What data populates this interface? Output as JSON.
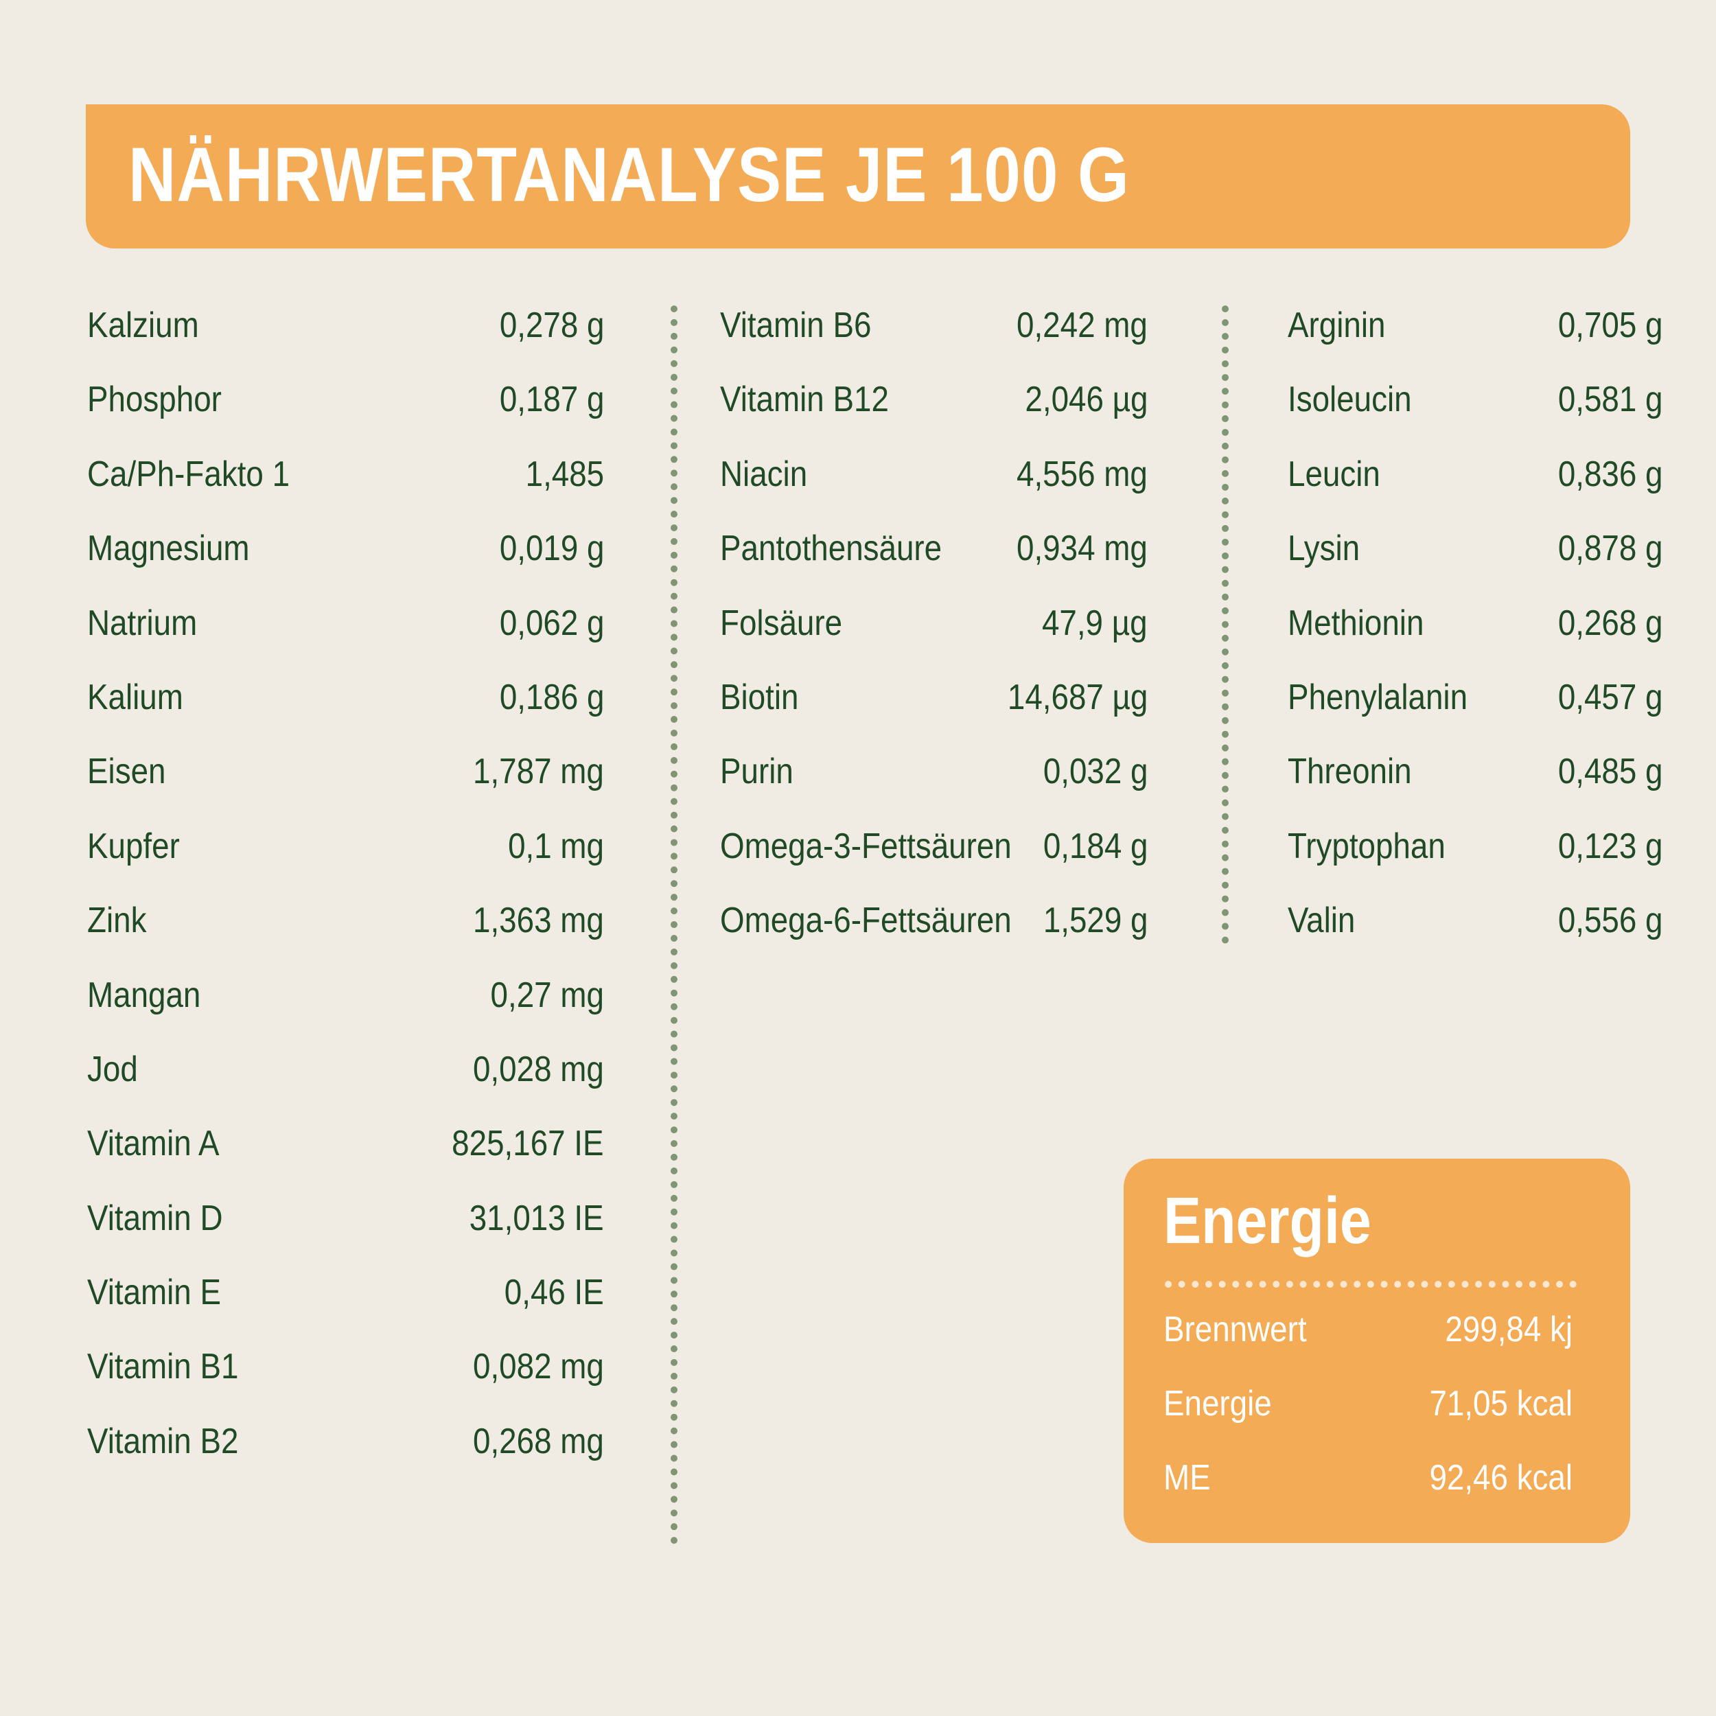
{
  "title": "NÄHRWERTANALYSE JE 100 G",
  "colors": {
    "accent": "#f4ab56",
    "text": "#1f4a25",
    "background": "#f0ebe3",
    "divider": "#7f9574"
  },
  "columns": [
    [
      {
        "label": "Kalzium",
        "value": "0,278 g"
      },
      {
        "label": "Phosphor",
        "value": "0,187 g"
      },
      {
        "label": "Ca/Ph-Fakto 1",
        "value": "1,485"
      },
      {
        "label": "Magnesium",
        "value": "0,019 g"
      },
      {
        "label": "Natrium",
        "value": "0,062 g"
      },
      {
        "label": "Kalium",
        "value": "0,186 g"
      },
      {
        "label": "Eisen",
        "value": "1,787 mg"
      },
      {
        "label": "Kupfer",
        "value": "0,1 mg"
      },
      {
        "label": "Zink",
        "value": "1,363 mg"
      },
      {
        "label": "Mangan",
        "value": "0,27 mg"
      },
      {
        "label": "Jod",
        "value": "0,028 mg"
      },
      {
        "label": "Vitamin A",
        "value": "825,167 IE"
      },
      {
        "label": "Vitamin D",
        "value": "31,013 IE"
      },
      {
        "label": "Vitamin E",
        "value": "0,46 IE"
      },
      {
        "label": "Vitamin B1",
        "value": "0,082 mg"
      },
      {
        "label": "Vitamin B2",
        "value": "0,268 mg"
      }
    ],
    [
      {
        "label": "Vitamin B6",
        "value": "0,242 mg"
      },
      {
        "label": "Vitamin B12",
        "value": "2,046 µg"
      },
      {
        "label": "Niacin",
        "value": "4,556 mg"
      },
      {
        "label": "Pantothensäure",
        "value": "0,934 mg"
      },
      {
        "label": "Folsäure",
        "value": "47,9 µg"
      },
      {
        "label": "Biotin",
        "value": "14,687 µg"
      },
      {
        "label": "Purin",
        "value": "0,032 g"
      },
      {
        "label": "Omega-3-Fettsäuren",
        "value": "0,184 g"
      },
      {
        "label": "Omega-6-Fettsäuren",
        "value": "1,529 g"
      }
    ],
    [
      {
        "label": "Arginin",
        "value": "0,705 g"
      },
      {
        "label": "Isoleucin",
        "value": "0,581 g"
      },
      {
        "label": "Leucin",
        "value": "0,836 g"
      },
      {
        "label": "Lysin",
        "value": "0,878 g"
      },
      {
        "label": "Methionin",
        "value": "0,268 g"
      },
      {
        "label": "Phenylalanin",
        "value": "0,457 g"
      },
      {
        "label": "Threonin",
        "value": "0,485 g"
      },
      {
        "label": "Tryptophan",
        "value": "0,123 g"
      },
      {
        "label": "Valin",
        "value": "0,556 g"
      }
    ]
  ],
  "energy": {
    "title": "Energie",
    "rows": [
      {
        "label": "Brennwert",
        "value": "299,84 kj"
      },
      {
        "label": "Energie",
        "value": "71,05 kcal"
      },
      {
        "label": "ME",
        "value": "92,46 kcal"
      }
    ]
  }
}
